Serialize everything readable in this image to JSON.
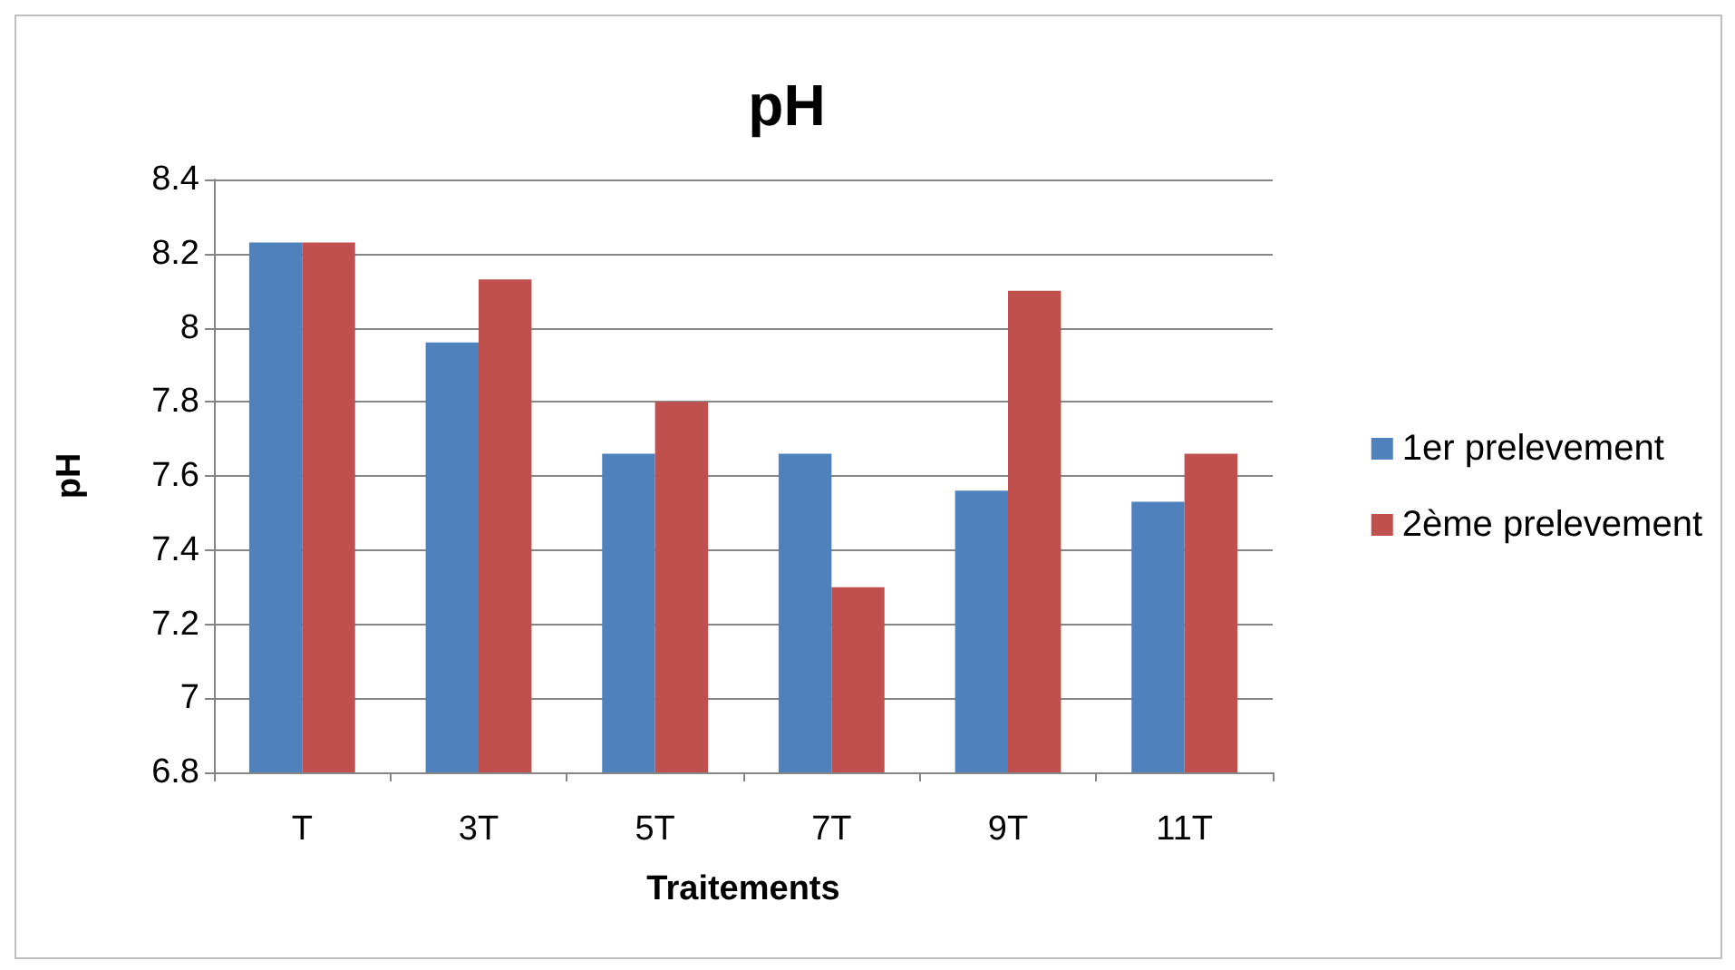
{
  "chart_data": {
    "type": "bar",
    "title": "pH",
    "xlabel": "Traitements",
    "ylabel": "pH",
    "categories": [
      "T",
      "3T",
      "5T",
      "7T",
      "9T",
      "11T"
    ],
    "series": [
      {
        "name": "1er prelevement",
        "color": "#4f81bd",
        "values": [
          8.23,
          7.96,
          7.66,
          7.66,
          7.56,
          7.53
        ]
      },
      {
        "name": "2ème prelevement",
        "color": "#c0504d",
        "values": [
          8.23,
          8.13,
          7.8,
          7.3,
          8.1,
          7.66
        ]
      }
    ],
    "ylim": [
      6.8,
      8.4
    ],
    "yticks": [
      6.8,
      7,
      7.2,
      7.4,
      7.6,
      7.8,
      8,
      8.2,
      8.4
    ],
    "grid": "y",
    "legend": "right"
  }
}
